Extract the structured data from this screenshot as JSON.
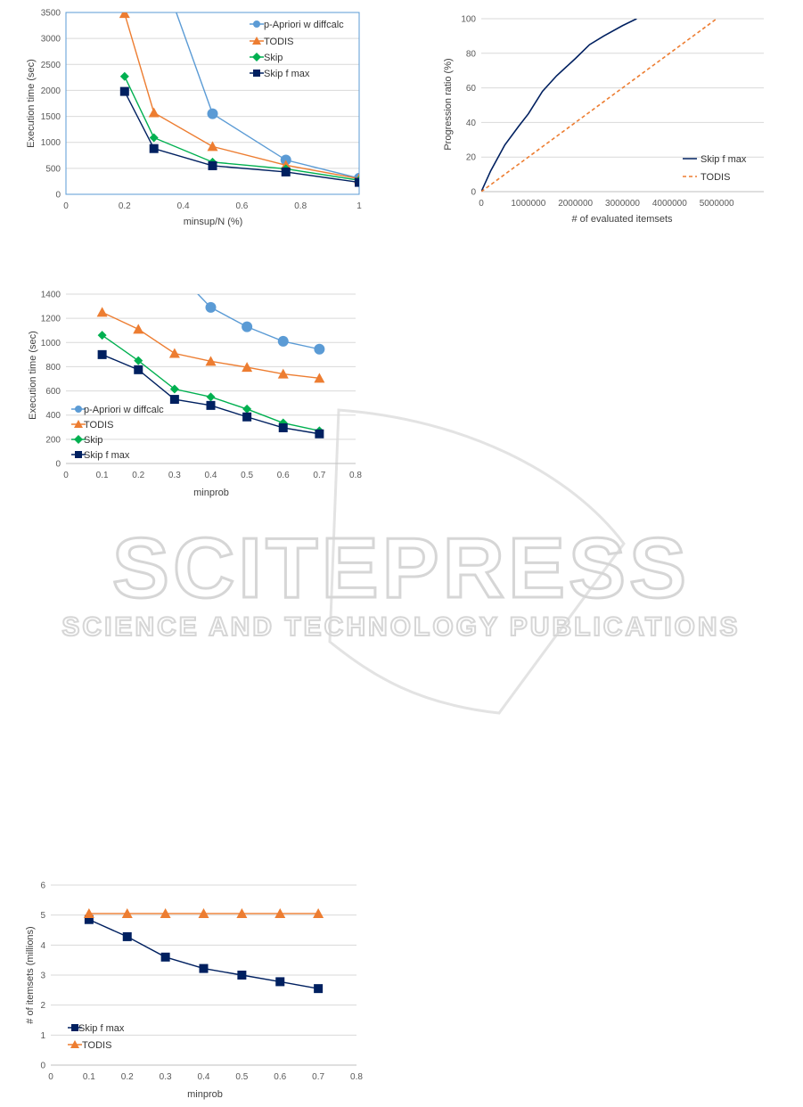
{
  "watermark": {
    "line1": "SCITEPRESS",
    "line2": "SCIENCE AND TECHNOLOGY PUBLICATIONS"
  },
  "colors": {
    "blue": "#5b9bd5",
    "orange": "#ed7d31",
    "green": "#00b050",
    "navy": "#002060",
    "grid": "#d9d9d9",
    "axis": "#bfbfbf"
  },
  "chart_data": [
    {
      "type": "line",
      "xlabel": "minsup/N (%)",
      "ylabel": "Execution time (sec)",
      "xlim": [
        0,
        1
      ],
      "ylim": [
        0,
        3500
      ],
      "xticks": [
        0,
        0.2,
        0.4,
        0.6,
        0.8,
        1
      ],
      "yticks": [
        0,
        500,
        1000,
        1500,
        2000,
        2500,
        3000,
        3500
      ],
      "grid": "horizontal",
      "legend_position": "top-right",
      "series": [
        {
          "name": "p-Apriori w diffcalc",
          "marker": "circle",
          "color": "#5b9bd5",
          "x": [
            0.3,
            0.5,
            0.75,
            1.0
          ],
          "y": [
            4700,
            1550,
            660,
            310
          ]
        },
        {
          "name": "TODIS",
          "marker": "triangle",
          "color": "#ed7d31",
          "x": [
            0.2,
            0.3,
            0.5,
            0.75,
            1.0
          ],
          "y": [
            3480,
            1570,
            920,
            560,
            300
          ]
        },
        {
          "name": "Skip",
          "marker": "diamond",
          "color": "#00b050",
          "x": [
            0.2,
            0.3,
            0.5,
            0.75,
            1.0
          ],
          "y": [
            2270,
            1090,
            620,
            490,
            270
          ]
        },
        {
          "name": "Skip f max",
          "marker": "square",
          "color": "#002060",
          "x": [
            0.2,
            0.3,
            0.5,
            0.75,
            1.0
          ],
          "y": [
            1980,
            880,
            550,
            430,
            230
          ]
        }
      ]
    },
    {
      "type": "line",
      "xlabel": "# of evaluated itemsets",
      "ylabel": "Progression ratio (%)",
      "xlim": [
        0,
        6000000
      ],
      "ylim": [
        0,
        100
      ],
      "xticks": [
        0,
        1000000,
        2000000,
        3000000,
        4000000,
        5000000
      ],
      "yticks": [
        0,
        20,
        40,
        60,
        80,
        100
      ],
      "grid": "horizontal",
      "legend_position": "bottom-right",
      "series": [
        {
          "name": "Skip f max",
          "style": "solid",
          "color": "#002060",
          "x": [
            0,
            200000,
            500000,
            800000,
            1000000,
            1300000,
            1600000,
            2000000,
            2300000,
            2600000,
            3000000,
            3300000
          ],
          "y": [
            0,
            12,
            27,
            38,
            45,
            58,
            67,
            77,
            85,
            90,
            96,
            100
          ]
        },
        {
          "name": "TODIS",
          "style": "dashed",
          "color": "#ed7d31",
          "x": [
            0,
            5000000
          ],
          "y": [
            0,
            100
          ]
        }
      ]
    },
    {
      "type": "line",
      "xlabel": "minprob",
      "ylabel": "Execution time (sec)",
      "xlim": [
        0,
        0.8
      ],
      "ylim": [
        0,
        1400
      ],
      "xticks": [
        0,
        0.1,
        0.2,
        0.3,
        0.4,
        0.5,
        0.6,
        0.7,
        0.8
      ],
      "yticks": [
        0,
        200,
        400,
        600,
        800,
        1000,
        1200,
        1400
      ],
      "grid": "horizontal",
      "legend_position": "bottom-left",
      "series": [
        {
          "name": "p-Apriori w diffcalc",
          "marker": "circle",
          "color": "#5b9bd5",
          "x": [
            0.3,
            0.4,
            0.5,
            0.6,
            0.7
          ],
          "y": [
            1600,
            1290,
            1130,
            1010,
            945
          ]
        },
        {
          "name": "TODIS",
          "marker": "triangle",
          "color": "#ed7d31",
          "x": [
            0.1,
            0.2,
            0.3,
            0.4,
            0.5,
            0.6,
            0.7
          ],
          "y": [
            1250,
            1110,
            910,
            845,
            795,
            740,
            705
          ]
        },
        {
          "name": "Skip",
          "marker": "diamond",
          "color": "#00b050",
          "x": [
            0.1,
            0.2,
            0.3,
            0.4,
            0.5,
            0.6,
            0.7
          ],
          "y": [
            1060,
            850,
            615,
            550,
            450,
            335,
            270
          ]
        },
        {
          "name": "Skip f max",
          "marker": "square",
          "color": "#002060",
          "x": [
            0.1,
            0.2,
            0.3,
            0.4,
            0.5,
            0.6,
            0.7
          ],
          "y": [
            900,
            775,
            530,
            480,
            385,
            295,
            245
          ]
        }
      ]
    },
    {
      "type": "line",
      "xlabel": "minprob",
      "ylabel": "# of itemsets (millions)",
      "xlim": [
        0,
        0.8
      ],
      "ylim": [
        0,
        6
      ],
      "xticks": [
        0,
        0.1,
        0.2,
        0.3,
        0.4,
        0.5,
        0.6,
        0.7,
        0.8
      ],
      "yticks": [
        0,
        1,
        2,
        3,
        4,
        5,
        6
      ],
      "grid": "horizontal",
      "legend_position": "bottom-left",
      "series": [
        {
          "name": "Skip f max",
          "marker": "square",
          "color": "#002060",
          "x": [
            0.1,
            0.2,
            0.3,
            0.4,
            0.5,
            0.6,
            0.7
          ],
          "y": [
            4.85,
            4.28,
            3.6,
            3.22,
            3.0,
            2.78,
            2.55
          ]
        },
        {
          "name": "TODIS",
          "marker": "triangle",
          "color": "#ed7d31",
          "x": [
            0.1,
            0.2,
            0.3,
            0.4,
            0.5,
            0.6,
            0.7
          ],
          "y": [
            5.05,
            5.05,
            5.05,
            5.05,
            5.05,
            5.05,
            5.05
          ]
        }
      ]
    }
  ]
}
